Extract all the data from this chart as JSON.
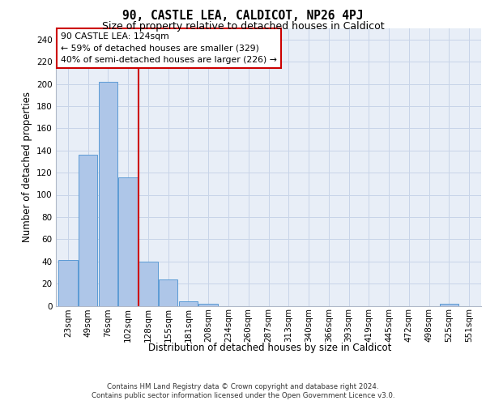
{
  "title1": "90, CASTLE LEA, CALDICOT, NP26 4PJ",
  "title2": "Size of property relative to detached houses in Caldicot",
  "xlabel": "Distribution of detached houses by size in Caldicot",
  "ylabel": "Number of detached properties",
  "bin_labels": [
    "23sqm",
    "49sqm",
    "76sqm",
    "102sqm",
    "128sqm",
    "155sqm",
    "181sqm",
    "208sqm",
    "234sqm",
    "260sqm",
    "287sqm",
    "313sqm",
    "340sqm",
    "366sqm",
    "393sqm",
    "419sqm",
    "445sqm",
    "472sqm",
    "498sqm",
    "525sqm",
    "551sqm"
  ],
  "bar_values": [
    41,
    136,
    202,
    116,
    40,
    24,
    4,
    2,
    0,
    0,
    0,
    0,
    0,
    0,
    0,
    0,
    0,
    0,
    0,
    2,
    0
  ],
  "bar_color": "#aec6e8",
  "bar_edge_color": "#5b9bd5",
  "vline_index": 3.5,
  "vline_color": "#cc0000",
  "annotation_text": "90 CASTLE LEA: 124sqm\n← 59% of detached houses are smaller (329)\n40% of semi-detached houses are larger (226) →",
  "annotation_box_color": "#ffffff",
  "annotation_box_edge": "#cc0000",
  "grid_color": "#c8d4e8",
  "bg_color": "#e8eef7",
  "footer1": "Contains HM Land Registry data © Crown copyright and database right 2024.",
  "footer2": "Contains public sector information licensed under the Open Government Licence v3.0.",
  "ylim": [
    0,
    250
  ],
  "yticks": [
    0,
    20,
    40,
    60,
    80,
    100,
    120,
    140,
    160,
    180,
    200,
    220,
    240
  ],
  "title1_fontsize": 10.5,
  "title2_fontsize": 9,
  "ylabel_fontsize": 8.5,
  "xlabel_fontsize": 8.5,
  "tick_fontsize": 7.5,
  "footer_fontsize": 6.2,
  "annot_fontsize": 7.8
}
